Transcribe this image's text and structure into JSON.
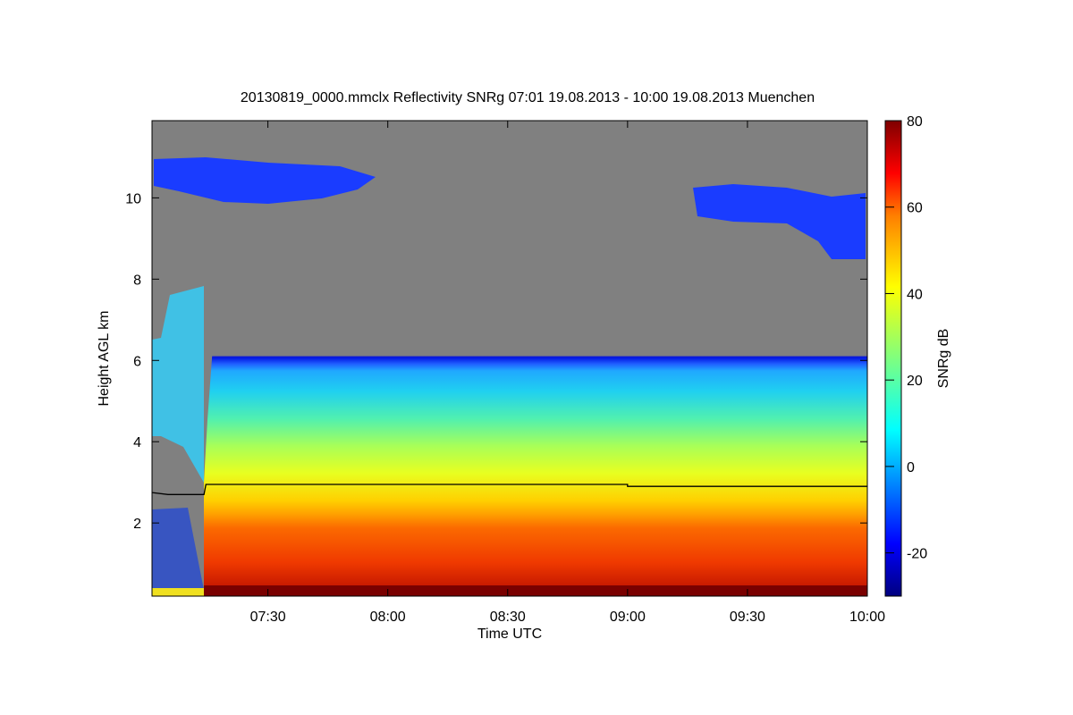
{
  "chart_data": {
    "type": "heatmap",
    "title": "20130819_0000.mmclx Reflectivity SNRg   07:01 19.08.2013 - 10:00 19.08.2013 Muenchen",
    "xlabel": "Time UTC",
    "ylabel": "Height AGL km",
    "colorbar_label": "SNRg dB",
    "xlim_minutes": [
      421,
      600
    ],
    "ylim": [
      0.2,
      11.9
    ],
    "color_range": [
      -30,
      80
    ],
    "x_ticks": [
      {
        "value": 450,
        "label": "07:30"
      },
      {
        "value": 480,
        "label": "08:00"
      },
      {
        "value": 510,
        "label": "08:30"
      },
      {
        "value": 540,
        "label": "09:00"
      },
      {
        "value": 570,
        "label": "09:30"
      },
      {
        "value": 600,
        "label": "10:00"
      }
    ],
    "y_ticks": [
      {
        "value": 2,
        "label": "2"
      },
      {
        "value": 4,
        "label": "4"
      },
      {
        "value": 6,
        "label": "6"
      },
      {
        "value": 8,
        "label": "8"
      },
      {
        "value": 10,
        "label": "10"
      }
    ],
    "colorbar_ticks": [
      {
        "value": -20,
        "label": "-20"
      },
      {
        "value": 0,
        "label": "0"
      },
      {
        "value": 20,
        "label": "20"
      },
      {
        "value": 40,
        "label": "40"
      },
      {
        "value": 60,
        "label": "60"
      },
      {
        "value": 80,
        "label": "80"
      }
    ],
    "melting_layer_line": [
      {
        "x": 421,
        "y": 2.75
      },
      {
        "x": 425,
        "y": 2.7
      },
      {
        "x": 434,
        "y": 2.7
      },
      {
        "x": 434.5,
        "y": 2.95
      },
      {
        "x": 540,
        "y": 2.95
      },
      {
        "x": 540,
        "y": 2.9
      },
      {
        "x": 600,
        "y": 2.9
      }
    ],
    "background_color": "#808080"
  }
}
